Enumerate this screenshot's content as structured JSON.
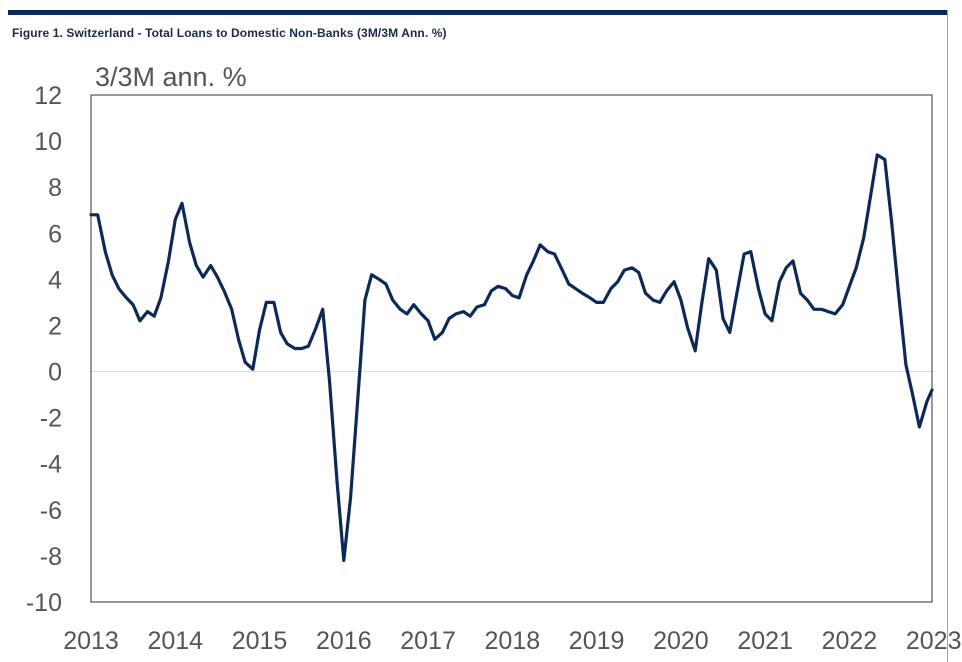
{
  "figure": {
    "title": "Figure 1. Switzerland - Total Loans to Domestic Non-Banks (3M/3M Ann. %)"
  },
  "colors": {
    "line": "#0b2a5b",
    "axis_text": "#555555",
    "frame": "#333333",
    "zero_line": "#d9d9d9",
    "rule": "#0b2a5b"
  },
  "chart_data": {
    "type": "line",
    "title": "",
    "unit_label": "3/3M ann. %",
    "xlabel": "",
    "ylabel": "",
    "xlim": [
      2013.0,
      2022.98
    ],
    "ylim": [
      -10,
      12
    ],
    "y_ticks": [
      12,
      10,
      8,
      6,
      4,
      2,
      0,
      -2,
      -4,
      -6,
      -8,
      -10
    ],
    "x_tick_labels": [
      "2013",
      "2014",
      "2015",
      "2016",
      "2017",
      "2018",
      "2019",
      "2020",
      "2021",
      "2022",
      "2023"
    ],
    "grid": false,
    "zero_line": true,
    "legend": "none",
    "series": [
      {
        "x": [
          2013.0,
          2013.08,
          2013.17,
          2013.25,
          2013.33,
          2013.42,
          2013.5,
          2013.58,
          2013.67,
          2013.75,
          2013.83,
          2013.92,
          2014.0,
          2014.08,
          2014.17,
          2014.25,
          2014.33,
          2014.42,
          2014.5,
          2014.58,
          2014.67,
          2014.75,
          2014.83,
          2014.92,
          2015.0,
          2015.08,
          2015.17,
          2015.25,
          2015.33,
          2015.42,
          2015.5,
          2015.58,
          2015.67,
          2015.75,
          2015.83,
          2015.92,
          2016.0,
          2016.08,
          2016.17,
          2016.25,
          2016.33,
          2016.42,
          2016.5,
          2016.58,
          2016.67,
          2016.75,
          2016.83,
          2016.92,
          2017.0,
          2017.08,
          2017.17,
          2017.25,
          2017.33,
          2017.42,
          2017.5,
          2017.58,
          2017.67,
          2017.75,
          2017.83,
          2017.92,
          2018.0,
          2018.08,
          2018.17,
          2018.25,
          2018.33,
          2018.42,
          2018.5,
          2018.58,
          2018.67,
          2018.75,
          2018.83,
          2018.92,
          2019.0,
          2019.08,
          2019.17,
          2019.25,
          2019.33,
          2019.42,
          2019.5,
          2019.58,
          2019.67,
          2019.75,
          2019.83,
          2019.92,
          2020.0,
          2020.08,
          2020.17,
          2020.25,
          2020.33,
          2020.42,
          2020.5,
          2020.58,
          2020.67,
          2020.75,
          2020.83,
          2020.92,
          2021.0,
          2021.08,
          2021.17,
          2021.25,
          2021.33,
          2021.42,
          2021.5,
          2021.58,
          2021.67,
          2021.75,
          2021.83,
          2021.92,
          2022.0,
          2022.08,
          2022.17,
          2022.25,
          2022.33,
          2022.42,
          2022.5,
          2022.58,
          2022.67,
          2022.75,
          2022.83,
          2022.92,
          2022.98
        ],
        "values": [
          6.8,
          6.8,
          5.2,
          4.2,
          3.6,
          3.2,
          2.9,
          2.2,
          2.6,
          2.4,
          3.2,
          4.8,
          6.6,
          7.3,
          5.6,
          4.6,
          4.1,
          4.6,
          4.1,
          3.5,
          2.7,
          1.4,
          0.4,
          0.1,
          1.8,
          3.0,
          3.0,
          1.7,
          1.2,
          1.0,
          1.0,
          1.1,
          1.9,
          2.7,
          -0.4,
          -4.8,
          -8.2,
          -5.5,
          -1.0,
          3.1,
          4.2,
          4.0,
          3.8,
          3.1,
          2.7,
          2.5,
          2.9,
          2.5,
          2.2,
          1.4,
          1.7,
          2.3,
          2.5,
          2.6,
          2.4,
          2.8,
          2.9,
          3.5,
          3.7,
          3.6,
          3.3,
          3.2,
          4.2,
          4.8,
          5.5,
          5.2,
          5.1,
          4.5,
          3.8,
          3.6,
          3.4,
          3.2,
          3.0,
          3.0,
          3.6,
          3.9,
          4.4,
          4.5,
          4.3,
          3.4,
          3.1,
          3.0,
          3.5,
          3.9,
          3.1,
          1.9,
          0.9,
          3.0,
          4.9,
          4.4,
          2.3,
          1.7,
          3.5,
          5.1,
          5.2,
          3.6,
          2.5,
          2.2,
          3.9,
          4.5,
          4.8,
          3.4,
          3.1,
          2.7,
          2.7,
          2.6,
          2.5,
          2.9,
          3.7,
          4.5,
          5.8,
          7.6,
          9.4,
          9.2,
          6.5,
          3.5,
          0.3,
          -1.0,
          -2.4,
          -1.3,
          -0.8
        ]
      }
    ]
  }
}
